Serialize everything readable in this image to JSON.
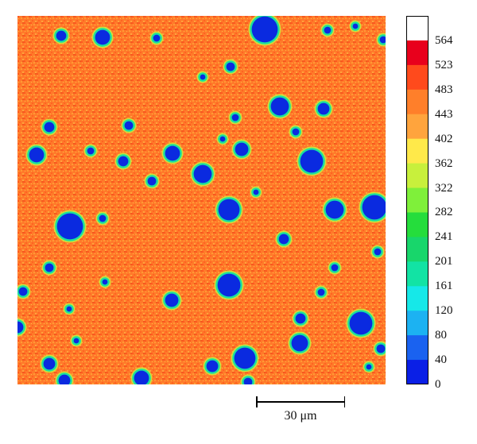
{
  "colorbar": {
    "labels": [
      "564",
      "523",
      "483",
      "443",
      "402",
      "362",
      "322",
      "282",
      "241",
      "201",
      "161",
      "120",
      "80",
      "40",
      "0"
    ],
    "colors": [
      "#ffffff",
      "#e8001c",
      "#ff4a1c",
      "#ff7f2a",
      "#ffa43d",
      "#ffe94a",
      "#c8f03c",
      "#7ff03a",
      "#25dd3c",
      "#18d66b",
      "#12e3a4",
      "#16e8e8",
      "#1cb2f2",
      "#1a62f0",
      "#0a1fe6"
    ]
  },
  "scalebar": {
    "label": "30 μm"
  },
  "image": {
    "background_color": "#ff7a2a",
    "particle_core_color": "#0a2ae0",
    "particle_rim_color": "#19e0a0",
    "particle_outer_color": "#c8f03c"
  }
}
